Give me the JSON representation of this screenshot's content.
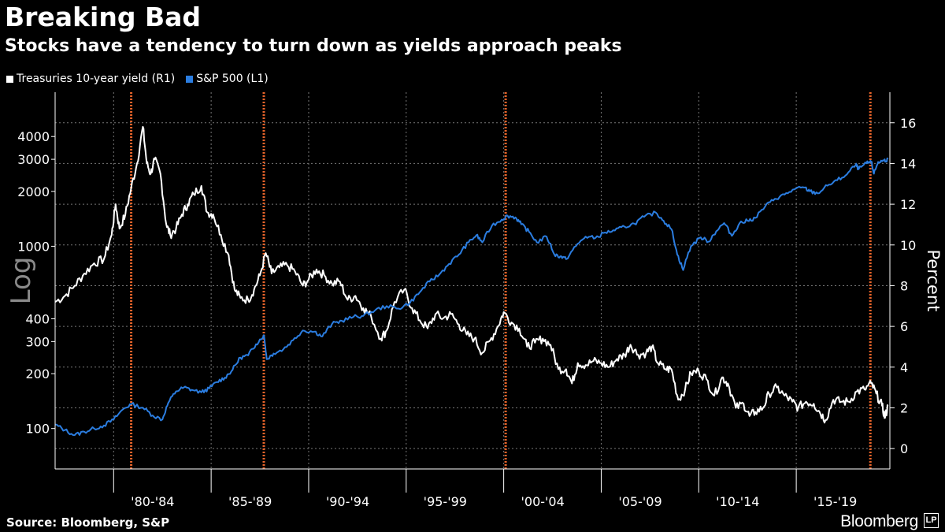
{
  "header": {
    "title": "Breaking Bad",
    "subtitle": "Stocks have a tendency to turn down as yields approach peaks"
  },
  "footer": {
    "source": "Source: Bloomberg, S&P",
    "brand": "Bloomberg",
    "brand_icon": "lp-logo-icon"
  },
  "colors": {
    "background": "#000000",
    "yield_line": "#ffffff",
    "spx_line": "#2b7de0",
    "peak_marker": "#e8642a",
    "grid": "#777777"
  },
  "chart_data": {
    "type": "line",
    "x_range": [
      1977,
      2019.8
    ],
    "left_axis": {
      "label": "Log",
      "scale": "log",
      "ylim": [
        60,
        7000
      ],
      "ticks": [
        100,
        200,
        300,
        400,
        1000,
        2000,
        3000,
        4000
      ]
    },
    "right_axis": {
      "label": "Percent",
      "ylim": [
        -1,
        17.5
      ],
      "ticks": [
        0,
        2,
        4,
        6,
        8,
        10,
        12,
        14,
        16
      ]
    },
    "x_ticks": [
      {
        "label": "'80-'84",
        "pos": 1982
      },
      {
        "label": "'85-'89",
        "pos": 1987
      },
      {
        "label": "'90-'94",
        "pos": 1992
      },
      {
        "label": "'95-'99",
        "pos": 1997
      },
      {
        "label": "'00-'04",
        "pos": 2002
      },
      {
        "label": "'05-'09",
        "pos": 2007
      },
      {
        "label": "'10-'14",
        "pos": 2012
      },
      {
        "label": "'15-'19",
        "pos": 2017
      }
    ],
    "x_tick_marks": [
      1980,
      1985,
      1990,
      1995,
      2000,
      2005,
      2010,
      2015
    ],
    "peak_markers": [
      1980.9,
      1987.7,
      2000.1,
      2018.8
    ],
    "series": [
      {
        "name": "Treasuries 10-year yield (R1)",
        "axis": "right",
        "x": [
          1977.0,
          1977.5,
          1978.0,
          1978.5,
          1979.0,
          1979.5,
          1979.9,
          1980.1,
          1980.3,
          1980.6,
          1980.9,
          1981.2,
          1981.5,
          1981.7,
          1981.9,
          1982.1,
          1982.4,
          1982.7,
          1982.9,
          1983.2,
          1983.5,
          1983.8,
          1984.1,
          1984.5,
          1984.8,
          1985.1,
          1985.5,
          1985.9,
          1986.2,
          1986.5,
          1986.9,
          1987.2,
          1987.5,
          1987.8,
          1988.1,
          1988.5,
          1988.9,
          1989.3,
          1989.7,
          1990.0,
          1990.4,
          1990.8,
          1991.2,
          1991.6,
          1992.0,
          1992.4,
          1992.8,
          1993.2,
          1993.7,
          1994.0,
          1994.4,
          1994.9,
          1995.3,
          1995.7,
          1996.1,
          1996.5,
          1996.9,
          1997.3,
          1997.7,
          1998.1,
          1998.5,
          1998.9,
          1999.3,
          1999.7,
          2000.0,
          2000.4,
          2000.8,
          2001.2,
          2001.6,
          2002.0,
          2002.4,
          2002.8,
          2003.2,
          2003.5,
          2003.8,
          2004.2,
          2004.6,
          2005.0,
          2005.4,
          2005.8,
          2006.2,
          2006.5,
          2006.9,
          2007.3,
          2007.6,
          2007.9,
          2008.3,
          2008.6,
          2008.95,
          2009.3,
          2009.6,
          2010.0,
          2010.4,
          2010.8,
          2011.2,
          2011.5,
          2011.9,
          2012.3,
          2012.6,
          2012.9,
          2013.3,
          2013.6,
          2014.0,
          2014.4,
          2014.8,
          2015.1,
          2015.5,
          2015.9,
          2016.2,
          2016.5,
          2016.9,
          2017.3,
          2017.7,
          2018.1,
          2018.5,
          2018.85,
          2019.1,
          2019.4,
          2019.55,
          2019.7
        ],
        "values": [
          7.2,
          7.5,
          8.0,
          8.6,
          9.1,
          9.3,
          10.5,
          12.0,
          10.8,
          11.5,
          12.8,
          14.0,
          15.8,
          14.0,
          13.5,
          14.2,
          13.5,
          11.0,
          10.5,
          10.8,
          11.5,
          12.0,
          12.5,
          12.9,
          11.6,
          11.5,
          10.5,
          9.5,
          7.8,
          7.4,
          7.3,
          7.8,
          8.5,
          9.6,
          8.6,
          8.9,
          9.0,
          8.7,
          8.0,
          8.3,
          8.8,
          8.5,
          8.1,
          8.2,
          7.3,
          7.5,
          6.9,
          6.5,
          5.4,
          5.8,
          7.2,
          7.8,
          6.9,
          6.3,
          5.9,
          6.6,
          6.4,
          6.6,
          6.1,
          5.6,
          5.4,
          4.7,
          5.3,
          6.0,
          6.7,
          6.2,
          5.9,
          5.0,
          5.2,
          5.4,
          5.1,
          3.9,
          3.9,
          3.2,
          4.2,
          4.1,
          4.3,
          4.2,
          4.0,
          4.4,
          4.6,
          5.1,
          4.6,
          4.7,
          5.0,
          4.2,
          3.9,
          3.9,
          2.4,
          2.9,
          3.7,
          3.8,
          3.4,
          2.6,
          3.5,
          3.2,
          2.0,
          2.2,
          1.6,
          1.8,
          2.0,
          2.7,
          3.0,
          2.6,
          2.3,
          2.0,
          2.3,
          2.2,
          1.8,
          1.4,
          2.4,
          2.3,
          2.3,
          2.8,
          2.9,
          3.2,
          2.7,
          2.1,
          1.5,
          2.1
        ],
        "color": "#ffffff"
      },
      {
        "name": "S&P 500 (L1)",
        "axis": "left",
        "x": [
          1977.0,
          1977.5,
          1978.0,
          1978.5,
          1979.0,
          1979.5,
          1980.0,
          1980.5,
          1980.9,
          1981.5,
          1982.0,
          1982.5,
          1982.8,
          1983.2,
          1983.6,
          1984.0,
          1984.5,
          1984.9,
          1985.3,
          1985.7,
          1986.1,
          1986.5,
          1986.9,
          1987.3,
          1987.7,
          1987.85,
          1988.2,
          1988.7,
          1989.2,
          1989.7,
          1990.3,
          1990.7,
          1991.2,
          1991.7,
          1992.3,
          1992.8,
          1993.4,
          1994.0,
          1994.6,
          1995.2,
          1995.7,
          1996.2,
          1996.7,
          1997.2,
          1997.7,
          1998.2,
          1998.6,
          1998.9,
          1999.4,
          1999.9,
          2000.2,
          2000.6,
          2000.9,
          2001.3,
          2001.7,
          2002.2,
          2002.6,
          2002.9,
          2003.2,
          2003.7,
          2004.2,
          2004.7,
          2005.2,
          2005.7,
          2006.2,
          2006.7,
          2007.2,
          2007.8,
          2008.2,
          2008.6,
          2008.9,
          2009.2,
          2009.6,
          2010.1,
          2010.5,
          2010.9,
          2011.3,
          2011.7,
          2012.1,
          2012.5,
          2012.9,
          2013.4,
          2013.9,
          2014.4,
          2014.9,
          2015.4,
          2015.7,
          2016.1,
          2016.6,
          2017.1,
          2017.6,
          2018.05,
          2018.2,
          2018.6,
          2018.85,
          2018.98,
          2019.2,
          2019.5,
          2019.7
        ],
        "values": [
          105,
          98,
          92,
          96,
          100,
          104,
          112,
          128,
          136,
          130,
          118,
          112,
          138,
          160,
          168,
          163,
          158,
          166,
          180,
          190,
          210,
          245,
          252,
          290,
          325,
          240,
          258,
          272,
          305,
          345,
          340,
          320,
          375,
          390,
          410,
          415,
          445,
          470,
          455,
          490,
          560,
          640,
          700,
          800,
          900,
          1050,
          1150,
          1050,
          1300,
          1400,
          1470,
          1440,
          1320,
          1200,
          1050,
          1130,
          900,
          880,
          850,
          1000,
          1130,
          1110,
          1190,
          1220,
          1280,
          1330,
          1450,
          1530,
          1380,
          1240,
          900,
          740,
          1000,
          1120,
          1060,
          1210,
          1340,
          1140,
          1340,
          1380,
          1430,
          1650,
          1820,
          1920,
          2050,
          2100,
          2000,
          1950,
          2150,
          2300,
          2480,
          2800,
          2650,
          2850,
          2900,
          2500,
          2900,
          2950,
          3000
        ],
        "color": "#2b7de0"
      }
    ]
  }
}
